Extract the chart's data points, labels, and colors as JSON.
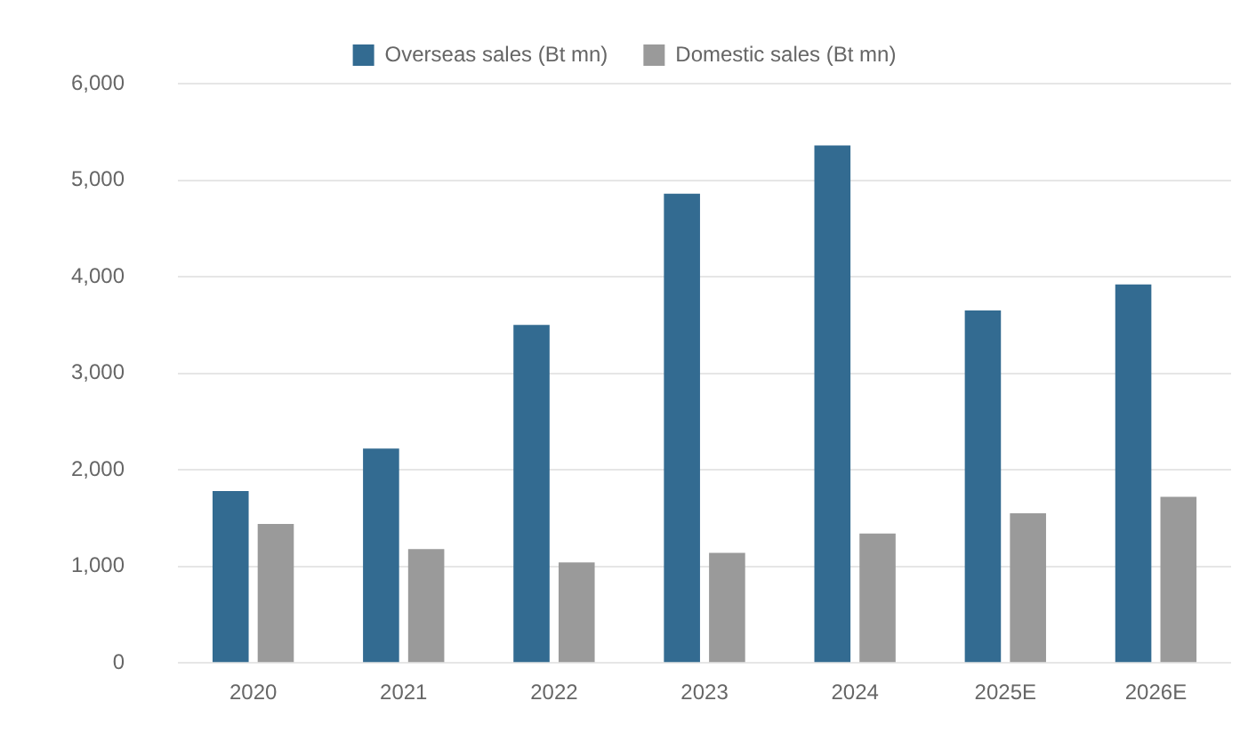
{
  "chart_data": {
    "type": "bar",
    "categories": [
      "2020",
      "2021",
      "2022",
      "2023",
      "2024",
      "2025E",
      "2026E"
    ],
    "series": [
      {
        "name": "Overseas sales (Bt mn)",
        "color": "#336b91",
        "values": [
          1780,
          2220,
          3500,
          4860,
          5360,
          3650,
          3920
        ]
      },
      {
        "name": "Domestic sales (Bt mn)",
        "color": "#9a9a9a",
        "values": [
          1440,
          1180,
          1040,
          1140,
          1340,
          1550,
          1720
        ]
      }
    ],
    "ylim": [
      0,
      6000
    ],
    "yticks": [
      {
        "value": 0,
        "label": "0"
      },
      {
        "value": 1000,
        "label": "1,000"
      },
      {
        "value": 2000,
        "label": "2,000"
      },
      {
        "value": 3000,
        "label": "3,000"
      },
      {
        "value": 4000,
        "label": "4,000"
      },
      {
        "value": 5000,
        "label": "5,000"
      },
      {
        "value": 6000,
        "label": "6,000"
      }
    ],
    "grid": "y",
    "legend": "top"
  }
}
